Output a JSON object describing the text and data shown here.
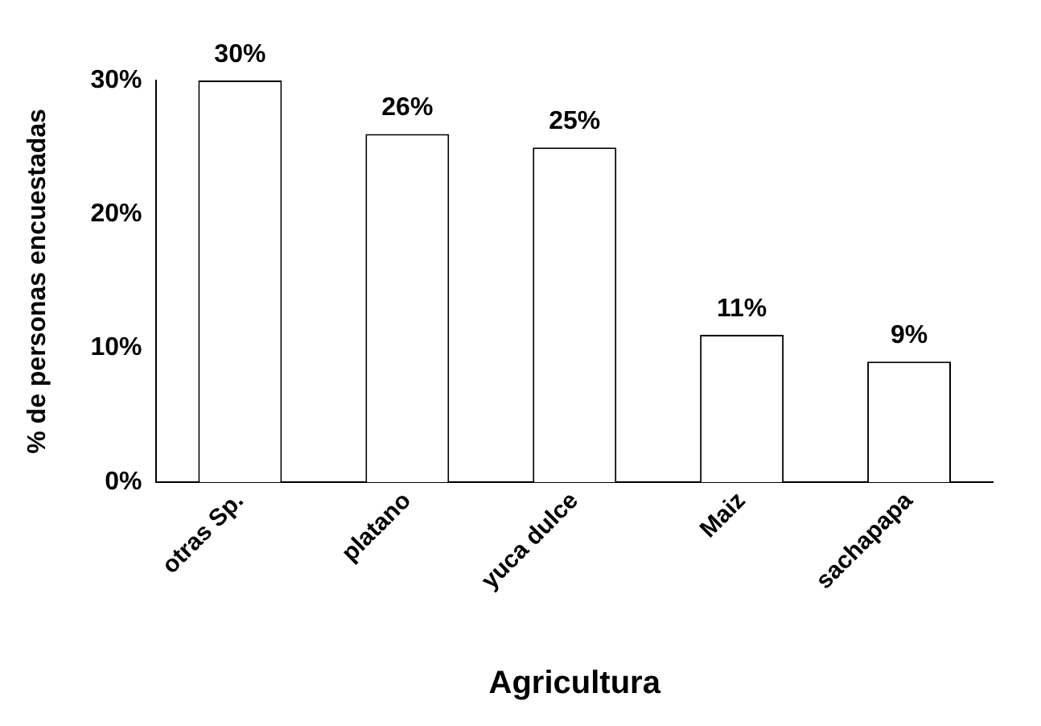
{
  "chart_data": {
    "type": "bar",
    "xlabel": "Agricultura",
    "ylabel": "% de personas encuestadas",
    "categories": [
      "otras Sp.",
      "platano",
      "yuca dulce",
      "Maiz",
      "sachapapa"
    ],
    "values": [
      30,
      26,
      25,
      11,
      9
    ],
    "value_labels": [
      "30%",
      "26%",
      "25%",
      "11%",
      "9%"
    ],
    "color": "#ffffff",
    "ylim": [
      0,
      30
    ],
    "yticks": [
      {
        "value": 0,
        "label": "0%"
      },
      {
        "value": 10,
        "label": "10%"
      },
      {
        "value": 20,
        "label": "20%"
      },
      {
        "value": 30,
        "label": "30%"
      }
    ],
    "grid": false,
    "legend": false
  }
}
